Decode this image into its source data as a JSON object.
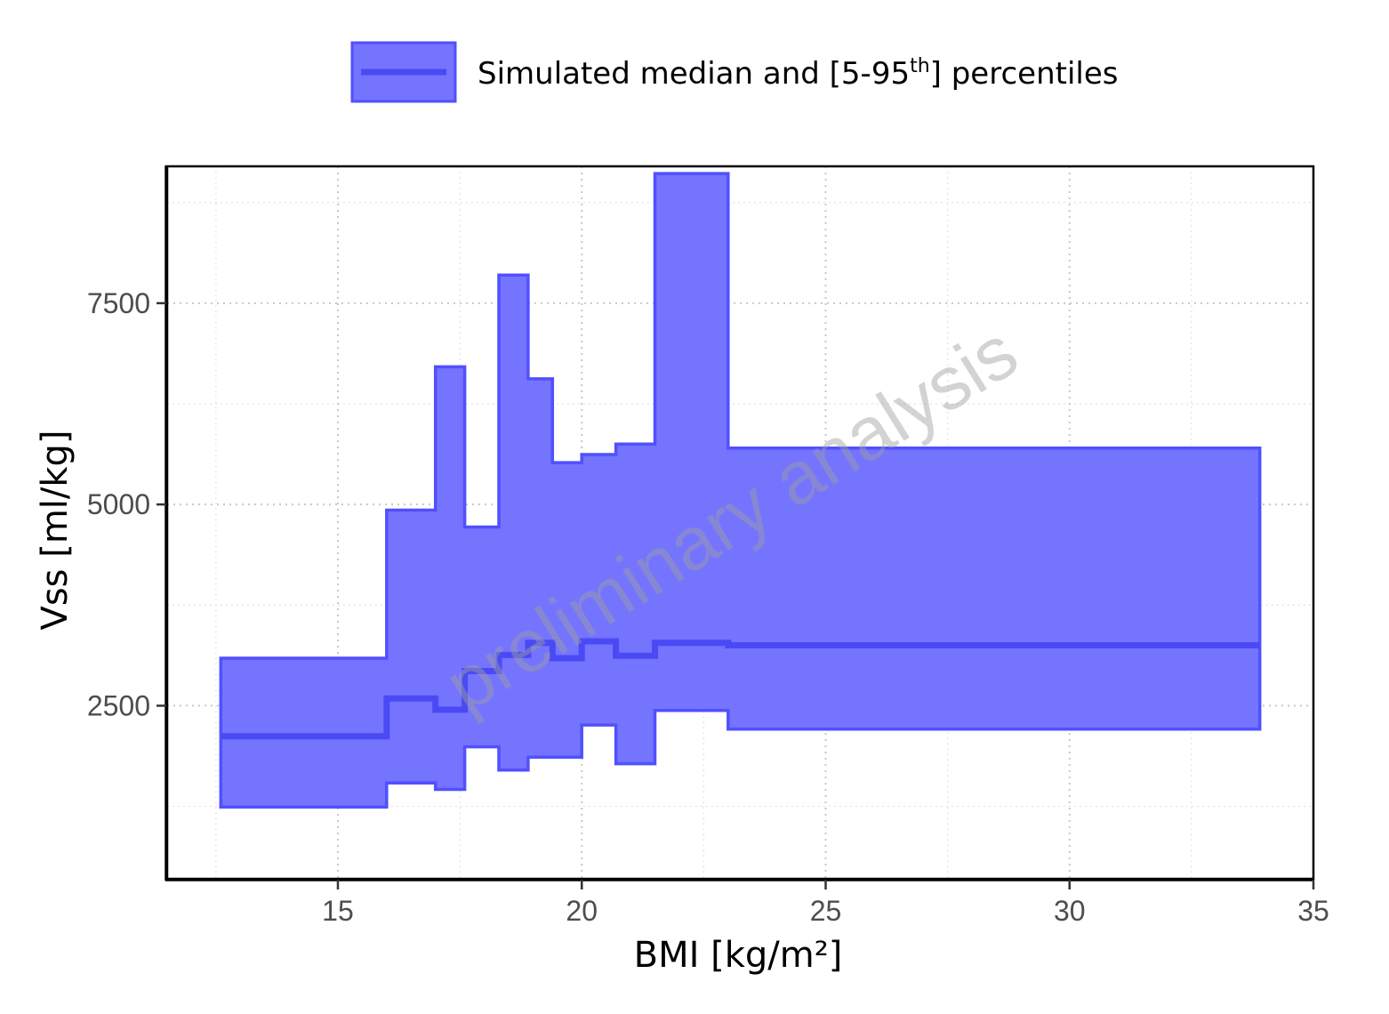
{
  "chart_data": {
    "type": "area",
    "xlabel": "BMI [kg/m²]",
    "ylabel": "Vss [ml/kg]",
    "xlim": [
      11.5,
      35
    ],
    "ylim": [
      350,
      9200
    ],
    "xticks": [
      15,
      20,
      25,
      30,
      35
    ],
    "yticks": [
      2500,
      5000,
      7500
    ],
    "grid": "dotted major and minor",
    "legend": {
      "position": "top",
      "label_prefix": "Simulated median and [5-95",
      "label_sup": "th",
      "label_suffix": "] percentiles"
    },
    "colors": {
      "band_fill": "#7474ff",
      "band_stroke": "#5050ff",
      "median": "#4a4af5"
    },
    "watermark": "preliminary analysis",
    "series": [
      {
        "name": "Simulated median and [5-95th] percentiles",
        "step_edges": [
          12.6,
          16.0,
          17.0,
          17.6,
          18.3,
          18.9,
          19.4,
          20.0,
          20.7,
          21.5,
          23.0,
          33.9
        ],
        "upper": [
          3090,
          4930,
          6710,
          4720,
          7850,
          6560,
          5520,
          5620,
          5750,
          9110,
          5700
        ],
        "median": [
          2120,
          2590,
          2450,
          2930,
          3130,
          3280,
          3090,
          3300,
          3120,
          3280,
          3250
        ],
        "lower": [
          1240,
          1540,
          1460,
          1990,
          1700,
          1860,
          1860,
          2260,
          1780,
          2440,
          2210
        ]
      }
    ]
  }
}
